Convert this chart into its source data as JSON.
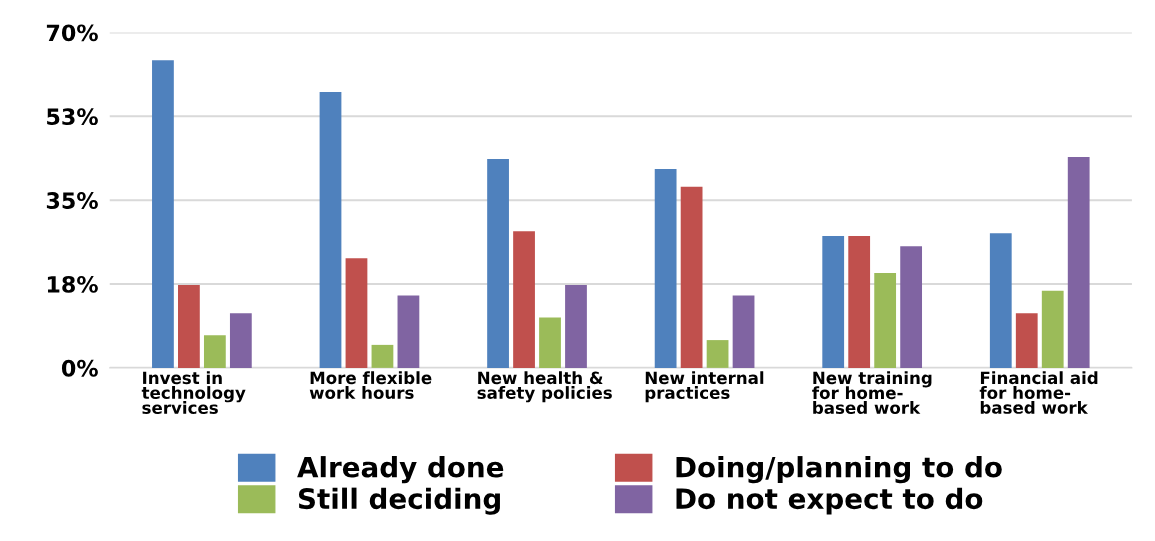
{
  "chart_data": {
    "type": "bar",
    "categories": [
      "Invest in\ntechnology\nservices",
      "More flexible\nwork hours",
      "New health &\nsafety policies",
      "New internal\npractices",
      "New training\nfor home-\nbased work",
      "Financial aid\nfor home-\nbased work"
    ],
    "series": [
      {
        "name": "Already done",
        "color": "#4f81bd",
        "values": [
          64.2,
          57.6,
          43.6,
          41.5,
          27.5,
          28.1
        ]
      },
      {
        "name": "Doing/planning to do",
        "color": "#c0504d",
        "values": [
          17.3,
          22.9,
          28.5,
          37.8,
          27.5,
          11.4
        ]
      },
      {
        "name": "Still deciding",
        "color": "#9bbb59",
        "values": [
          6.8,
          4.8,
          10.5,
          5.8,
          19.8,
          16.1
        ]
      },
      {
        "name": "Do not expect to do",
        "color": "#8064a2",
        "values": [
          11.4,
          15.1,
          17.3,
          15.1,
          25.4,
          44.0
        ]
      }
    ],
    "ylim": [
      0,
      70
    ],
    "yticks": [
      {
        "value": 0,
        "label": "0%"
      },
      {
        "value": 17.5,
        "label": "18%"
      },
      {
        "value": 35,
        "label": "35%"
      },
      {
        "value": 52.5,
        "label": "53%"
      },
      {
        "value": 70,
        "label": "70%"
      }
    ],
    "grid": "y",
    "legend": "bottom"
  }
}
